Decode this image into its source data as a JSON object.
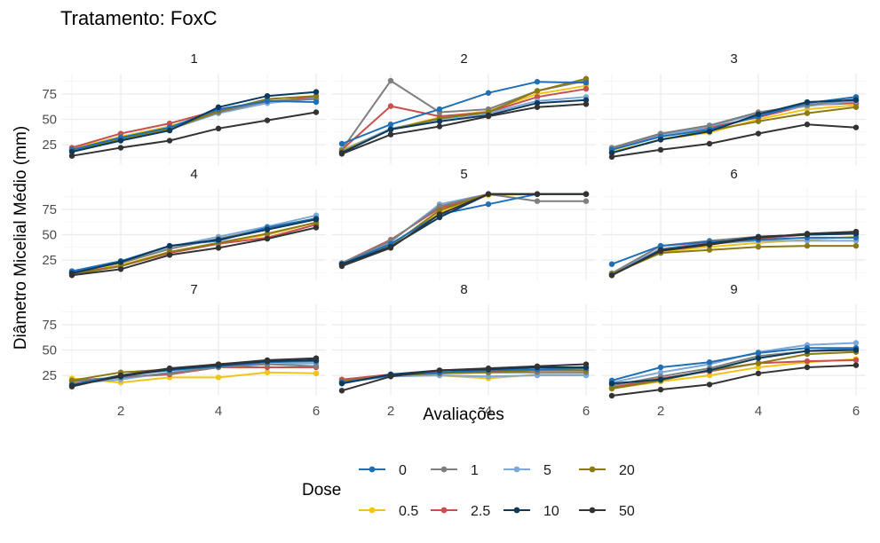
{
  "title": "Tratamento: FoxC",
  "chart_data": {
    "type": "line",
    "facets": [
      {
        "label": "1",
        "series": [
          {
            "dose": "0",
            "values": [
              20,
              32,
              42,
              60,
              68,
              67
            ]
          },
          {
            "dose": "0.5",
            "values": [
              21,
              33,
              43,
              58,
              68,
              70
            ]
          },
          {
            "dose": "1",
            "values": [
              20,
              31,
              41,
              57,
              68,
              70
            ]
          },
          {
            "dose": "2.5",
            "values": [
              22,
              36,
              46,
              59,
              67,
              72
            ]
          },
          {
            "dose": "5",
            "values": [
              19,
              30,
              40,
              56,
              66,
              71
            ]
          },
          {
            "dose": "10",
            "values": [
              18,
              29,
              39,
              62,
              73,
              77
            ]
          },
          {
            "dose": "20",
            "values": [
              20,
              30,
              40,
              58,
              70,
              73
            ]
          },
          {
            "dose": "50",
            "values": [
              14,
              22,
              29,
              41,
              49,
              57
            ]
          }
        ]
      },
      {
        "label": "2",
        "series": [
          {
            "dose": "0",
            "values": [
              26,
              45,
              60,
              76,
              87,
              86
            ]
          },
          {
            "dose": "0.5",
            "values": [
              20,
              40,
              52,
              58,
              75,
              83
            ]
          },
          {
            "dose": "1",
            "values": [
              20,
              88,
              57,
              60,
              78,
              88
            ]
          },
          {
            "dose": "2.5",
            "values": [
              20,
              63,
              53,
              57,
              72,
              80
            ]
          },
          {
            "dose": "5",
            "values": [
              19,
              41,
              50,
              56,
              68,
              72
            ]
          },
          {
            "dose": "10",
            "values": [
              17,
              40,
              48,
              54,
              66,
              69
            ]
          },
          {
            "dose": "20",
            "values": [
              18,
              40,
              51,
              57,
              78,
              90
            ]
          },
          {
            "dose": "50",
            "values": [
              16,
              35,
              43,
              53,
              62,
              65
            ]
          }
        ]
      },
      {
        "label": "3",
        "series": [
          {
            "dose": "0",
            "values": [
              20,
              33,
              40,
              53,
              66,
              72
            ]
          },
          {
            "dose": "0.5",
            "values": [
              18,
              30,
              37,
              50,
              60,
              64
            ]
          },
          {
            "dose": "1",
            "values": [
              22,
              36,
              44,
              57,
              64,
              70
            ]
          },
          {
            "dose": "2.5",
            "values": [
              21,
              35,
              42,
              52,
              64,
              66
            ]
          },
          {
            "dose": "5",
            "values": [
              20,
              34,
              43,
              56,
              63,
              68
            ]
          },
          {
            "dose": "10",
            "values": [
              17,
              30,
              38,
              55,
              67,
              69
            ]
          },
          {
            "dose": "20",
            "values": [
              17,
              30,
              39,
              48,
              56,
              62
            ]
          },
          {
            "dose": "50",
            "values": [
              13,
              20,
              26,
              36,
              45,
              42
            ]
          }
        ]
      },
      {
        "label": "4",
        "series": [
          {
            "dose": "0",
            "values": [
              14,
              24,
              39,
              44,
              57,
              66
            ]
          },
          {
            "dose": "0.5",
            "values": [
              13,
              20,
              33,
              42,
              50,
              62
            ]
          },
          {
            "dose": "1",
            "values": [
              14,
              22,
              36,
              46,
              56,
              66
            ]
          },
          {
            "dose": "2.5",
            "values": [
              12,
              19,
              32,
              41,
              47,
              60
            ]
          },
          {
            "dose": "5",
            "values": [
              14,
              24,
              38,
              48,
              58,
              69
            ]
          },
          {
            "dose": "10",
            "values": [
              12,
              23,
              39,
              45,
              55,
              65
            ]
          },
          {
            "dose": "20",
            "values": [
              11,
              19,
              33,
              42,
              51,
              62
            ]
          },
          {
            "dose": "50",
            "values": [
              10,
              16,
              30,
              37,
              46,
              57
            ]
          }
        ]
      },
      {
        "label": "5",
        "series": [
          {
            "dose": "0",
            "values": [
              21,
              41,
              70,
              80,
              90,
              90
            ]
          },
          {
            "dose": "0.5",
            "values": [
              21,
              40,
              72,
              89,
              90,
              90
            ]
          },
          {
            "dose": "1",
            "values": [
              22,
              44,
              78,
              90,
              83,
              83
            ]
          },
          {
            "dose": "2.5",
            "values": [
              22,
              45,
              76,
              90,
              90,
              90
            ]
          },
          {
            "dose": "5",
            "values": [
              21,
              43,
              80,
              90,
              90,
              90
            ]
          },
          {
            "dose": "10",
            "values": [
              21,
              38,
              67,
              90,
              90,
              90
            ]
          },
          {
            "dose": "20",
            "values": [
              20,
              39,
              74,
              90,
              90,
              90
            ]
          },
          {
            "dose": "50",
            "values": [
              19,
              37,
              70,
              90,
              90,
              90
            ]
          }
        ]
      },
      {
        "label": "6",
        "series": [
          {
            "dose": "0",
            "values": [
              21,
              39,
              43,
              45,
              47,
              47
            ]
          },
          {
            "dose": "0.5",
            "values": [
              11,
              33,
              38,
              42,
              45,
              48
            ]
          },
          {
            "dose": "1",
            "values": [
              12,
              39,
              44,
              48,
              50,
              52
            ]
          },
          {
            "dose": "2.5",
            "values": [
              11,
              36,
              42,
              46,
              50,
              51
            ]
          },
          {
            "dose": "5",
            "values": [
              12,
              36,
              41,
              44,
              44,
              44
            ]
          },
          {
            "dose": "10",
            "values": [
              10,
              35,
              41,
              48,
              50,
              51
            ]
          },
          {
            "dose": "20",
            "values": [
              11,
              32,
              35,
              38,
              39,
              39
            ]
          },
          {
            "dose": "50",
            "values": [
              10,
              34,
              40,
              47,
              51,
              53
            ]
          }
        ]
      },
      {
        "label": "7",
        "series": [
          {
            "dose": "0",
            "values": [
              16,
              25,
              30,
              34,
              38,
              39
            ]
          },
          {
            "dose": "0.5",
            "values": [
              22,
              18,
              23,
              23,
              28,
              27
            ]
          },
          {
            "dose": "1",
            "values": [
              20,
              23,
              27,
              33,
              36,
              34
            ]
          },
          {
            "dose": "2.5",
            "values": [
              19,
              23,
              26,
              33,
              33,
              33
            ]
          },
          {
            "dose": "5",
            "values": [
              17,
              21,
              28,
              33,
              36,
              37
            ]
          },
          {
            "dose": "10",
            "values": [
              15,
              24,
              31,
              35,
              39,
              40
            ]
          },
          {
            "dose": "20",
            "values": [
              20,
              28,
              31,
              36,
              39,
              40
            ]
          },
          {
            "dose": "50",
            "values": [
              14,
              25,
              32,
              36,
              40,
              42
            ]
          }
        ]
      },
      {
        "label": "8",
        "series": [
          {
            "dose": "0",
            "values": [
              18,
              25,
              28,
              30,
              31,
              32
            ]
          },
          {
            "dose": "0.5",
            "values": [
              20,
              26,
              25,
              22,
              26,
              26
            ]
          },
          {
            "dose": "1",
            "values": [
              19,
              25,
              27,
              28,
              28,
              28
            ]
          },
          {
            "dose": "2.5",
            "values": [
              21,
              26,
              28,
              29,
              30,
              30
            ]
          },
          {
            "dose": "5",
            "values": [
              18,
              24,
              25,
              24,
              25,
              25
            ]
          },
          {
            "dose": "10",
            "values": [
              17,
              26,
              30,
              31,
              33,
              33
            ]
          },
          {
            "dose": "20",
            "values": [
              19,
              25,
              27,
              28,
              30,
              30
            ]
          },
          {
            "dose": "50",
            "values": [
              10,
              24,
              30,
              32,
              34,
              36
            ]
          }
        ]
      },
      {
        "label": "9",
        "series": [
          {
            "dose": "0",
            "values": [
              20,
              33,
              38,
              47,
              52,
              52
            ]
          },
          {
            "dose": "0.5",
            "values": [
              12,
              19,
              25,
              33,
              38,
              41
            ]
          },
          {
            "dose": "1",
            "values": [
              15,
              24,
              32,
              44,
              49,
              52
            ]
          },
          {
            "dose": "2.5",
            "values": [
              13,
              22,
              29,
              37,
              39,
              40
            ]
          },
          {
            "dose": "5",
            "values": [
              18,
              28,
              36,
              48,
              55,
              57
            ]
          },
          {
            "dose": "10",
            "values": [
              17,
              21,
              30,
              42,
              49,
              50
            ]
          },
          {
            "dose": "20",
            "values": [
              12,
              20,
              30,
              37,
              46,
              48
            ]
          },
          {
            "dose": "50",
            "values": [
              5,
              11,
              16,
              27,
              33,
              35
            ]
          }
        ]
      }
    ],
    "x": [
      1,
      2,
      3,
      4,
      5,
      6
    ],
    "x_ticks": [
      "2",
      "4",
      "6"
    ],
    "y_ticks": [
      "25",
      "50",
      "75"
    ],
    "ylim": [
      5,
      95
    ],
    "xlim": [
      0.8,
      6.2
    ],
    "xlabel": "Avaliações",
    "ylabel": "Diâmetro Micelial Médio (mm)",
    "grid": true,
    "legend": {
      "title": "Dose",
      "position": "bottom",
      "entries": [
        {
          "label": "0",
          "color": "#1f6fb6"
        },
        {
          "label": "1",
          "color": "#7f7f7f"
        },
        {
          "label": "5",
          "color": "#7ea8d8"
        },
        {
          "label": "20",
          "color": "#8b7a12"
        },
        {
          "label": "0.5",
          "color": "#f0c419"
        },
        {
          "label": "2.5",
          "color": "#c8504f"
        },
        {
          "label": "10",
          "color": "#0b3a5e"
        },
        {
          "label": "50",
          "color": "#333333"
        }
      ]
    }
  }
}
